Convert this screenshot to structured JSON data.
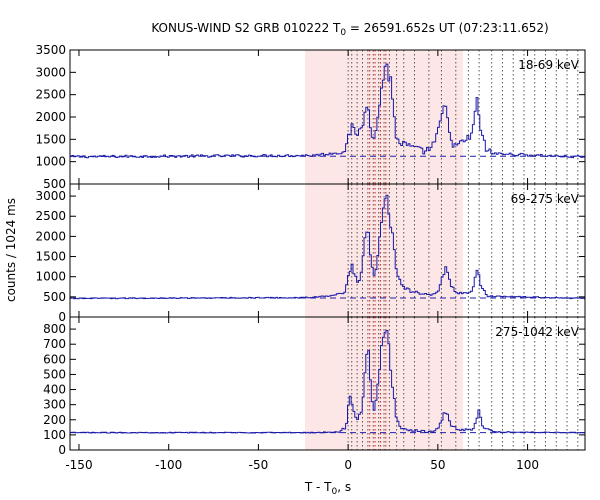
{
  "chart_data": {
    "type": "line",
    "title_prefix": "KONUS-WIND S2 GRB 010222 T",
    "title_sub": "0",
    "title_suffix": " = 26591.652s UT (07:23:11.652)",
    "xlabel_prefix": "T - T",
    "xlabel_sub": "0",
    "xlabel_suffix": ", s",
    "ylabel": "counts / 1024 ms",
    "xlim": [
      -155,
      132
    ],
    "xticks": [
      -150,
      -100,
      -50,
      0,
      50,
      100
    ],
    "shaded_interval": [
      -24,
      64
    ],
    "dotted_lines": [
      0,
      2,
      5,
      8,
      11,
      14,
      17,
      20,
      23,
      27,
      31,
      37,
      45,
      52,
      60,
      67,
      73,
      80,
      86,
      92,
      98,
      104,
      110,
      116,
      122,
      128
    ],
    "red_dotted_lines": [
      12,
      15,
      18,
      21
    ],
    "panels": [
      {
        "label": "18-69 keV",
        "ylim": [
          500,
          3500
        ],
        "yticks": [
          500,
          1000,
          1500,
          2000,
          2500,
          3000,
          3500
        ],
        "background": 1120,
        "keypoints": [
          [
            -155,
            1110
          ],
          [
            -20,
            1140
          ],
          [
            -5,
            1200
          ],
          [
            -1,
            1300
          ],
          [
            0,
            1550
          ],
          [
            2,
            1760
          ],
          [
            4,
            1620
          ],
          [
            7,
            1700
          ],
          [
            9,
            1980
          ],
          [
            11,
            2500
          ],
          [
            12,
            1950
          ],
          [
            14,
            1520
          ],
          [
            16,
            1700
          ],
          [
            18,
            2550
          ],
          [
            20,
            2950
          ],
          [
            21,
            3250
          ],
          [
            22,
            3050
          ],
          [
            24,
            2750
          ],
          [
            25,
            2250
          ],
          [
            27,
            1500
          ],
          [
            30,
            1400
          ],
          [
            34,
            1350
          ],
          [
            38,
            1280
          ],
          [
            42,
            1230
          ],
          [
            46,
            1300
          ],
          [
            49,
            1500
          ],
          [
            52,
            1950
          ],
          [
            54,
            2350
          ],
          [
            56,
            1700
          ],
          [
            59,
            1350
          ],
          [
            63,
            1400
          ],
          [
            66,
            1500
          ],
          [
            69,
            1600
          ],
          [
            71,
            2100
          ],
          [
            72,
            2400
          ],
          [
            74,
            1700
          ],
          [
            77,
            1250
          ],
          [
            82,
            1180
          ],
          [
            132,
            1100
          ]
        ]
      },
      {
        "label": "69-275 keV",
        "ylim": [
          0,
          3300
        ],
        "yticks": [
          0,
          500,
          1000,
          1500,
          2000,
          2500,
          3000
        ],
        "background": 470,
        "keypoints": [
          [
            -155,
            460
          ],
          [
            -25,
            480
          ],
          [
            -10,
            520
          ],
          [
            -2,
            620
          ],
          [
            0,
            950
          ],
          [
            2,
            1320
          ],
          [
            4,
            1000
          ],
          [
            6,
            820
          ],
          [
            8,
            1300
          ],
          [
            10,
            2150
          ],
          [
            11,
            2350
          ],
          [
            12,
            1700
          ],
          [
            14,
            1000
          ],
          [
            16,
            1300
          ],
          [
            18,
            2300
          ],
          [
            20,
            2800
          ],
          [
            21,
            3050
          ],
          [
            22,
            2900
          ],
          [
            23,
            2600
          ],
          [
            25,
            1900
          ],
          [
            27,
            1150
          ],
          [
            30,
            750
          ],
          [
            35,
            640
          ],
          [
            42,
            570
          ],
          [
            48,
            560
          ],
          [
            51,
            720
          ],
          [
            53,
            1050
          ],
          [
            55,
            1250
          ],
          [
            57,
            820
          ],
          [
            60,
            620
          ],
          [
            65,
            580
          ],
          [
            69,
            650
          ],
          [
            71,
            1000
          ],
          [
            72,
            1200
          ],
          [
            74,
            720
          ],
          [
            78,
            520
          ],
          [
            132,
            460
          ]
        ]
      },
      {
        "label": "275-1042 keV",
        "ylim": [
          0,
          880
        ],
        "yticks": [
          0,
          100,
          200,
          300,
          400,
          500,
          600,
          700,
          800
        ],
        "background": 115,
        "keypoints": [
          [
            -155,
            115
          ],
          [
            -20,
            115
          ],
          [
            -5,
            120
          ],
          [
            -1,
            150
          ],
          [
            0,
            300
          ],
          [
            1,
            370
          ],
          [
            3,
            270
          ],
          [
            5,
            200
          ],
          [
            8,
            280
          ],
          [
            10,
            650
          ],
          [
            11,
            700
          ],
          [
            12,
            500
          ],
          [
            14,
            250
          ],
          [
            16,
            350
          ],
          [
            18,
            620
          ],
          [
            20,
            760
          ],
          [
            21,
            810
          ],
          [
            22,
            750
          ],
          [
            23,
            620
          ],
          [
            25,
            400
          ],
          [
            27,
            200
          ],
          [
            30,
            140
          ],
          [
            40,
            125
          ],
          [
            48,
            120
          ],
          [
            51,
            160
          ],
          [
            53,
            230
          ],
          [
            55,
            260
          ],
          [
            57,
            170
          ],
          [
            62,
            130
          ],
          [
            70,
            140
          ],
          [
            72,
            230
          ],
          [
            73,
            270
          ],
          [
            75,
            160
          ],
          [
            80,
            120
          ],
          [
            132,
            115
          ]
        ]
      }
    ]
  }
}
